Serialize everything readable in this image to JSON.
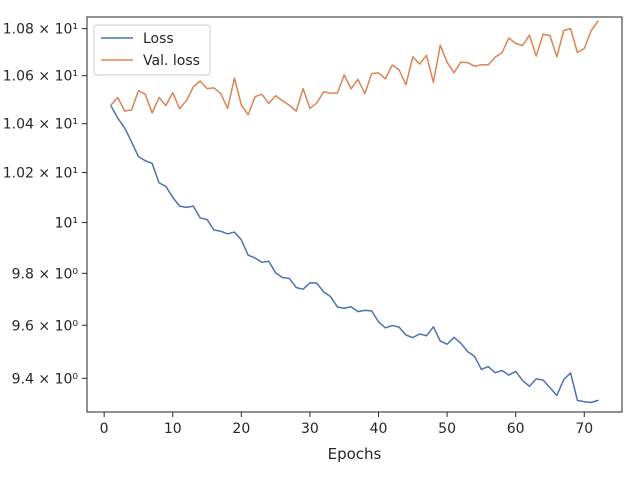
{
  "chart_data": {
    "type": "line",
    "title": "",
    "xlabel": "Epochs",
    "ylabel": "",
    "yscale": "log",
    "grid": false,
    "legend_position": "top-left",
    "xlim": [
      -2.5,
      75.5
    ],
    "ylim": [
      9.275,
      10.85
    ],
    "x_ticks": [
      0,
      10,
      20,
      30,
      40,
      50,
      60,
      70
    ],
    "x_tick_labels": [
      "0",
      "10",
      "20",
      "30",
      "40",
      "50",
      "60",
      "70"
    ],
    "y_ticks": [
      9.4,
      9.6,
      9.8,
      10.0,
      10.2,
      10.4,
      10.6,
      10.8
    ],
    "y_tick_labels": [
      "9.4 × 10⁰",
      "9.6 × 10⁰",
      "9.8 × 10⁰",
      "10¹",
      "1.02 × 10¹",
      "1.04 × 10¹",
      "1.06 × 10¹",
      "1.08 × 10¹"
    ],
    "x": [
      1,
      2,
      3,
      4,
      5,
      6,
      7,
      8,
      9,
      10,
      11,
      12,
      13,
      14,
      15,
      16,
      17,
      18,
      19,
      20,
      21,
      22,
      23,
      24,
      25,
      26,
      27,
      28,
      29,
      30,
      31,
      32,
      33,
      34,
      35,
      36,
      37,
      38,
      39,
      40,
      41,
      42,
      43,
      44,
      45,
      46,
      47,
      48,
      49,
      50,
      51,
      52,
      53,
      54,
      55,
      56,
      57,
      58,
      59,
      60,
      61,
      62,
      63,
      64,
      65,
      66,
      67,
      68,
      69,
      70,
      71,
      72
    ],
    "series": [
      {
        "name": "Loss",
        "color": "#4c72b0",
        "values": [
          10.474,
          10.422,
          10.382,
          10.325,
          10.265,
          10.248,
          10.237,
          10.159,
          10.144,
          10.1,
          10.065,
          10.06,
          10.065,
          10.018,
          10.012,
          9.97,
          9.965,
          9.955,
          9.962,
          9.931,
          9.871,
          9.86,
          9.843,
          9.847,
          9.802,
          9.784,
          9.78,
          9.745,
          9.738,
          9.763,
          9.762,
          9.728,
          9.71,
          9.67,
          9.665,
          9.671,
          9.652,
          9.657,
          9.655,
          9.613,
          9.59,
          9.599,
          9.593,
          9.563,
          9.553,
          9.567,
          9.56,
          9.594,
          9.54,
          9.528,
          9.554,
          9.532,
          9.5,
          9.482,
          9.433,
          9.444,
          9.421,
          9.429,
          9.412,
          9.426,
          9.392,
          9.37,
          9.398,
          9.393,
          9.365,
          9.336,
          9.395,
          9.42,
          9.318,
          9.313,
          9.31,
          9.318
        ]
      },
      {
        "name": "Val. loss",
        "color": "#dd8452",
        "values": [
          10.478,
          10.508,
          10.452,
          10.457,
          10.537,
          10.522,
          10.444,
          10.509,
          10.475,
          10.529,
          10.462,
          10.496,
          10.553,
          10.578,
          10.546,
          10.549,
          10.525,
          10.463,
          10.59,
          10.477,
          10.437,
          10.512,
          10.522,
          10.484,
          10.516,
          10.495,
          10.476,
          10.452,
          10.546,
          10.463,
          10.486,
          10.532,
          10.527,
          10.527,
          10.603,
          10.545,
          10.585,
          10.525,
          10.609,
          10.612,
          10.587,
          10.645,
          10.625,
          10.562,
          10.68,
          10.649,
          10.686,
          10.572,
          10.729,
          10.657,
          10.612,
          10.657,
          10.655,
          10.64,
          10.646,
          10.646,
          10.678,
          10.697,
          10.76,
          10.737,
          10.728,
          10.772,
          10.683,
          10.776,
          10.77,
          10.68,
          10.792,
          10.8,
          10.698,
          10.715,
          10.791,
          10.832
        ]
      }
    ]
  }
}
